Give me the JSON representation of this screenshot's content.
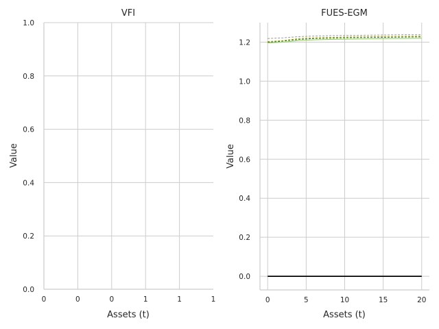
{
  "chart_data": [
    {
      "type": "line",
      "title": "VFI",
      "xlabel": "Assets (t)",
      "ylabel": "Value",
      "xticks": [
        "0",
        "0",
        "0",
        "1",
        "1",
        "1"
      ],
      "yticks": [
        "0.0",
        "0.2",
        "0.4",
        "0.6",
        "0.8",
        "1.0"
      ],
      "ylim": [
        0,
        1
      ],
      "grid": true,
      "series": []
    },
    {
      "type": "line",
      "title": "FUES-EGM",
      "xlabel": "Assets (t)",
      "ylabel": "Value",
      "xlim": [
        -1,
        21
      ],
      "ylim": [
        -0.07,
        1.3
      ],
      "xticks": [
        0,
        5,
        10,
        15,
        20
      ],
      "yticks": [
        0.0,
        0.2,
        0.4,
        0.6,
        0.8,
        1.0,
        1.2
      ],
      "grid": true,
      "series": [
        {
          "color": "#000000",
          "style": "solid",
          "width": 1.8,
          "x": [
            0,
            20
          ],
          "y": [
            0.0,
            0.0
          ]
        },
        {
          "color": "#999999",
          "style": "dashed",
          "width": 1,
          "x": [
            0,
            2,
            4,
            6,
            8,
            10,
            12,
            14,
            16,
            18,
            20
          ],
          "y": [
            1.218,
            1.222,
            1.228,
            1.231,
            1.233,
            1.234,
            1.235,
            1.236,
            1.237,
            1.238,
            1.238
          ]
        },
        {
          "color": "#b5a100",
          "style": "dashed",
          "width": 1,
          "x": [
            0,
            2,
            4,
            6,
            8,
            10,
            12,
            14,
            16,
            18,
            20
          ],
          "y": [
            1.203,
            1.208,
            1.218,
            1.222,
            1.224,
            1.226,
            1.227,
            1.228,
            1.229,
            1.23,
            1.231
          ]
        },
        {
          "color": "#2a7a2a",
          "style": "dashed",
          "width": 1,
          "x": [
            0,
            2,
            4,
            6,
            8,
            10,
            12,
            14,
            16,
            18,
            20
          ],
          "y": [
            1.199,
            1.205,
            1.214,
            1.218,
            1.22,
            1.222,
            1.223,
            1.224,
            1.225,
            1.226,
            1.227
          ]
        },
        {
          "color": "#8fd14f",
          "style": "solid",
          "width": 1,
          "x": [
            0,
            2,
            4,
            6,
            8,
            10,
            12,
            14,
            16,
            18,
            20
          ],
          "y": [
            1.196,
            1.2,
            1.208,
            1.212,
            1.214,
            1.215,
            1.216,
            1.217,
            1.218,
            1.219,
            1.22
          ]
        }
      ]
    }
  ]
}
